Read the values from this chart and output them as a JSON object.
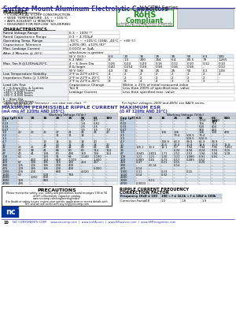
{
  "title_bold": "Surface Mount Aluminum Electrolytic Capacitors",
  "title_series": " NACEW Series",
  "bg_color": "#ffffff",
  "header_color": "#333399",
  "table_header_bg": "#c8d0dc",
  "grid_color": "#aaaaaa",
  "rohs_color": "#228822",
  "page_num": "10",
  "footer_text": "NIC COMPONENTS CORP.    www.niccomp.com  |  www.IceSA.com  |  www.NPassives.com  |  www.SMTmagnetics.com",
  "features": [
    "CYLINDRICAL V-CHIP CONSTRUCTION",
    "WIDE TEMPERATURE -55 ~ +105°C",
    "ANTI-SOLVENT (2 MINUTES)",
    "DESIGNED FOR REFLOW  SOLDERING"
  ],
  "char_simple": [
    [
      "Rated Voltage Range",
      "6.3 ~ 100V **"
    ],
    [
      "Rated Capacitance Range",
      "0.1 ~ 4,700μF"
    ],
    [
      "Operating Temp. Range",
      "-55°C ~ +105°C (10W, -40°C ~ +85°C)"
    ],
    [
      "Capacitance Tolerance",
      "±20% (M), ±10% (K)*"
    ],
    [
      "Max. Leakage Current",
      "0.01CV or 3μA,"
    ],
    [
      "After 2 Minutes @ 20°C",
      "whichever is greater"
    ]
  ],
  "tan_voltages": [
    "6.3",
    "10",
    "16",
    "25",
    "35",
    "50",
    "6.3",
    "100"
  ],
  "tan_row0": [
    "W V (V/4:)",
    "6.3",
    "10",
    "16",
    "25",
    "35",
    "50",
    "6.3",
    "100"
  ],
  "tan_row1": [
    "6.3 (W6)",
    "8",
    "1.5",
    "200",
    "154",
    "6.4",
    "80.5",
    "79",
    "1,265"
  ],
  "tan_label": "Max. Tan δ @120Hz&20°C",
  "tan_row2_label": "4 ~ 6.3mm Dia.",
  "tan_row2": [
    "0.26",
    "0.24",
    "0.20",
    "0.16",
    "0.12",
    "0.10",
    "0.12",
    "0.10"
  ],
  "tan_row3_label": "8 & larger",
  "tan_row3": [
    "0.40",
    "0.214",
    "0.28",
    "0.18",
    "0.16",
    "0.18",
    "-",
    "0.12"
  ],
  "tan_row4": [
    "W V (V6)",
    "4.3",
    "10",
    "16",
    "25",
    "25",
    "50",
    "6.3",
    "1.06"
  ],
  "lts_label": "Low Temperature Stability",
  "imp_label": "Impedance Ratio @ 1,000z",
  "lts_row0_label": "2*F to 22*F±20°C",
  "lts_row0": [
    "4",
    "2",
    "2",
    "2",
    "2",
    "2",
    "2",
    "2"
  ],
  "lts_row1_label": "2*F to 22*F±-20°C",
  "lts_row1": [
    "3",
    "2",
    "2",
    "2",
    "2",
    "2",
    "2",
    "-"
  ],
  "lts_row2_label": "2*F to 22*F±-40°C",
  "lts_row2": [
    "8",
    "8",
    "4",
    "4",
    "3",
    "3",
    "3",
    "-"
  ],
  "load_left_lines": [
    "4 ~ 6.3mm Dia. & 1μmms",
    "+105°C 0,000 hours",
    "+85°C 4,000 hours",
    "+85°C 4,000 hours"
  ],
  "load_right_rows": [
    [
      "Capacitance Change",
      "Within ± 25% of initial measured value"
    ],
    [
      "Tan δ",
      "Less than 200% of specified max. value"
    ],
    [
      "Leakage Current",
      "Less than specified max. value"
    ]
  ],
  "load_lower_lines": [
    "6 ~ 8mm Dia.",
    "+105°C 2,000 hours",
    "+85°C 4,000 hours",
    "+85°C 4,000 hours"
  ],
  "footnote1": "* Optional ±10% (K) Tolerance - see case size chart  **",
  "footnote2": "For higher voltages, 200V and 400V, see NACS series.",
  "ripple_title": "MAXIMUM PERMISSIBLE RIPPLE CURRENT",
  "ripple_subtitle": "(mA rms AT 120Hz AND 105°C)",
  "ripple_headers": [
    "Cap (μF)",
    "6.3",
    "10",
    "16",
    "25",
    "35",
    "50",
    "63",
    "100"
  ],
  "ripple_wv_header": "Working Voltage (V/dc)",
  "ripple_rows": [
    [
      "0.1",
      "-",
      "-",
      "-",
      "-",
      "-",
      "0.7",
      "0.7",
      "-"
    ],
    [
      "0.22",
      "-",
      "-",
      "-",
      "-",
      "-",
      "1.8",
      "0.81",
      "-"
    ],
    [
      "0.33",
      "-",
      "-",
      "-",
      "-",
      "-",
      "2.5",
      "2.5",
      "-"
    ],
    [
      "0.47",
      "-",
      "-",
      "-",
      "-",
      "-",
      "3.5",
      "3.5",
      "7.0"
    ],
    [
      "1.0",
      "20",
      "25",
      "25",
      "27",
      "21",
      "24",
      "24",
      "20"
    ],
    [
      "2.2",
      "-",
      "-",
      "-",
      "11",
      "11",
      "14",
      "-",
      "-"
    ],
    [
      "3.3",
      "-",
      "-",
      "-",
      "-",
      "-",
      "-",
      "-",
      "-"
    ],
    [
      "4.7",
      "-",
      "-",
      "13",
      "14",
      "16",
      "18",
      "20",
      "-"
    ],
    [
      "10",
      "-",
      "-",
      "14",
      "20",
      "21",
      "24",
      "24",
      "20"
    ],
    [
      "22",
      "20",
      "25",
      "27",
      "40",
      "44",
      "80",
      "64",
      "64"
    ],
    [
      "33",
      "27",
      "38",
      "41",
      "68",
      "80",
      "80",
      "114",
      "114"
    ],
    [
      "47",
      "40",
      "41",
      "168",
      "80",
      "490",
      "150",
      "134",
      "153"
    ],
    [
      "100",
      "50",
      "-",
      "160",
      "91",
      "64",
      "1,140",
      "1,190",
      "-"
    ],
    [
      "150",
      "-",
      "460",
      "164",
      "640",
      "1,109",
      "-",
      "1,400",
      "-"
    ],
    [
      "220",
      "67",
      "130",
      "195",
      "115",
      "160",
      "224",
      "267",
      "-"
    ],
    [
      "330",
      "105",
      "105",
      "195",
      "200",
      "400",
      "-",
      "-",
      "-"
    ],
    [
      "470",
      "109",
      "195",
      "195",
      "200",
      "400",
      "-",
      "5,000",
      "-"
    ],
    [
      "1000",
      "200",
      "200",
      "-",
      "680",
      "-",
      "4,020",
      "-",
      "-"
    ],
    [
      "1500",
      "53",
      "-",
      "500",
      "-",
      "740",
      "-",
      "-",
      "-"
    ],
    [
      "2200",
      "-",
      "1050",
      "800",
      "-",
      "-",
      "-",
      "-",
      "-"
    ],
    [
      "3300",
      "120",
      "-",
      "840",
      "-",
      "-",
      "-",
      "-",
      "-"
    ],
    [
      "4700",
      "490",
      "-",
      "-",
      "-",
      "-",
      "-",
      "-",
      "-"
    ]
  ],
  "esr_title": "MAXIMUM ESR",
  "esr_subtitle": "(Ω AT 120Hz AND 20°C)",
  "esr_headers": [
    "Cap (μF)",
    "6.3",
    "10",
    "16",
    "25",
    "35",
    "50",
    "63/\n100",
    "500"
  ],
  "esr_wv_header": "Working Voltage (V/dc)",
  "esr_rows": [
    [
      "0.1",
      "-",
      "-",
      "-",
      "-",
      "-",
      "1010",
      "1,000",
      "-"
    ],
    [
      "0.22",
      "-",
      "-",
      "-",
      "-",
      "-",
      "716",
      "716",
      "-"
    ],
    [
      "0.33",
      "-",
      "-",
      "-",
      "-",
      "-",
      "500",
      "404",
      "-"
    ],
    [
      "0.47",
      "-",
      "-",
      "-",
      "-",
      "-",
      "300",
      "424",
      "-"
    ],
    [
      "1.0",
      "-",
      "-",
      "106",
      "106",
      "-",
      "106",
      "100",
      "400"
    ],
    [
      "2.2",
      "-",
      "-",
      "-",
      "73.4",
      "500.5",
      "73.4",
      "-",
      "-"
    ],
    [
      "3.3",
      "-",
      "-",
      "-",
      "-",
      "500.5",
      "500.9",
      "-",
      "-"
    ],
    [
      "4.7",
      "-",
      "-",
      "130.9",
      "63.3",
      "99.8",
      "62.9",
      "99.9",
      "-"
    ],
    [
      "10",
      "-",
      "-",
      "20.5",
      "22.0",
      "10.8",
      "14.6",
      "10.9",
      "16.8"
    ],
    [
      "22",
      "100.1",
      "10.1",
      "12.1",
      "9.7",
      "7.94",
      "7.94",
      "7.95",
      "7,450"
    ],
    [
      "33",
      "-",
      "-",
      "-",
      "6.24",
      "4.34",
      "4.24",
      "3.15",
      "3.15"
    ],
    [
      "47",
      "3,040",
      "2,821",
      "1.71",
      "2.52",
      "2.52",
      "1.94",
      "1.94",
      "1.18"
    ],
    [
      "100",
      "1.21",
      "1.21",
      "1.20",
      "1.21",
      "1,080",
      "0.91",
      "0.91",
      "-"
    ],
    [
      "150",
      "0.989",
      "0.65",
      "0.73",
      "0.57",
      "0.489",
      "0.52",
      "-",
      "-"
    ],
    [
      "220",
      "0.47",
      "-",
      "0.21",
      "0.15",
      "-",
      "0.20",
      "-",
      "-"
    ],
    [
      "330",
      "-",
      "20.14",
      "-",
      "0.14",
      "-",
      "-",
      "-",
      "-"
    ],
    [
      "470",
      "0.14",
      "-",
      "-",
      "-",
      "-",
      "-",
      "-",
      "-"
    ],
    [
      "1000",
      "0.31",
      "-",
      "0.23",
      "-",
      "0.15",
      "-",
      "-",
      "-"
    ],
    [
      "1500",
      "0.14",
      "-",
      "0.32",
      "-",
      "-",
      "-",
      "-",
      "-"
    ],
    [
      "2200",
      "-",
      "-",
      "-",
      "-",
      "-",
      "-",
      "-",
      "-"
    ],
    [
      "3300",
      "-",
      "0.11",
      "-",
      "-",
      "-",
      "-",
      "-",
      "-"
    ],
    [
      "4700",
      "0.0003",
      "-",
      "-",
      "-",
      "-",
      "-",
      "-",
      "-"
    ]
  ],
  "correction_headers": [
    "Frequency (Hz)",
    "f ≤ 100",
    "100 < f ≤ 1k",
    "1k < f ≤ 10k",
    "f ≥ 100k"
  ],
  "correction_values": [
    "Correction Factor",
    "0.8",
    "1.0",
    "1.8",
    "1.9"
  ]
}
